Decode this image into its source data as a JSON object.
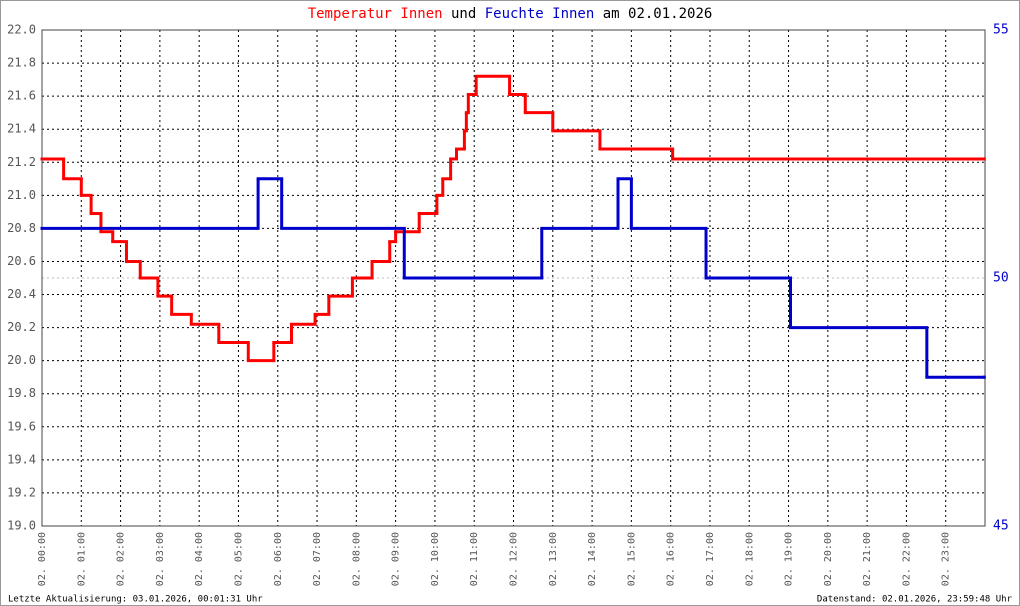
{
  "chart_data": {
    "type": "step-line",
    "title": [
      {
        "text": "Temperatur Innen",
        "color": "#ff0000"
      },
      {
        "text": "und",
        "color": "#000000"
      },
      {
        "text": "Feuchte Innen",
        "color": "#0000cc"
      },
      {
        "text": "am 02.01.2026",
        "color": "#000000"
      }
    ],
    "xlim": [
      0,
      24
    ],
    "xticks": [
      {
        "value": 0,
        "label": "02. 00:00"
      },
      {
        "value": 1,
        "label": "02. 01:00"
      },
      {
        "value": 2,
        "label": "02. 02:00"
      },
      {
        "value": 3,
        "label": "02. 03:00"
      },
      {
        "value": 4,
        "label": "02. 04:00"
      },
      {
        "value": 5,
        "label": "02. 05:00"
      },
      {
        "value": 6,
        "label": "02. 06:00"
      },
      {
        "value": 7,
        "label": "02. 07:00"
      },
      {
        "value": 8,
        "label": "02. 08:00"
      },
      {
        "value": 9,
        "label": "02. 09:00"
      },
      {
        "value": 10,
        "label": "02. 10:00"
      },
      {
        "value": 11,
        "label": "02. 11:00"
      },
      {
        "value": 12,
        "label": "02. 12:00"
      },
      {
        "value": 13,
        "label": "02. 13:00"
      },
      {
        "value": 14,
        "label": "02. 14:00"
      },
      {
        "value": 15,
        "label": "02. 15:00"
      },
      {
        "value": 16,
        "label": "02. 16:00"
      },
      {
        "value": 17,
        "label": "02. 17:00"
      },
      {
        "value": 18,
        "label": "02. 18:00"
      },
      {
        "value": 19,
        "label": "02. 19:00"
      },
      {
        "value": 20,
        "label": "02. 20:00"
      },
      {
        "value": 21,
        "label": "02. 21:00"
      },
      {
        "value": 22,
        "label": "02. 22:00"
      },
      {
        "value": 23,
        "label": "02. 23:00"
      }
    ],
    "ylim": [
      19.0,
      22.0
    ],
    "yticks": [
      {
        "value": 19.0,
        "label": "19.0"
      },
      {
        "value": 19.2,
        "label": "19.2"
      },
      {
        "value": 19.4,
        "label": "19.4"
      },
      {
        "value": 19.6,
        "label": "19.6"
      },
      {
        "value": 19.8,
        "label": "19.8"
      },
      {
        "value": 20.0,
        "label": "20.0"
      },
      {
        "value": 20.2,
        "label": "20.2"
      },
      {
        "value": 20.4,
        "label": "20.4"
      },
      {
        "value": 20.6,
        "label": "20.6"
      },
      {
        "value": 20.8,
        "label": "20.8"
      },
      {
        "value": 21.0,
        "label": "21.0"
      },
      {
        "value": 21.2,
        "label": "21.2"
      },
      {
        "value": 21.4,
        "label": "21.4"
      },
      {
        "value": 21.6,
        "label": "21.6"
      },
      {
        "value": 21.8,
        "label": "21.8"
      },
      {
        "value": 22.0,
        "label": "22.0"
      }
    ],
    "y2lim": [
      45,
      55
    ],
    "y2ticks": [
      45,
      50,
      55
    ],
    "y2_color": "#0000cc",
    "grid": true,
    "series": [
      {
        "name": "Temperatur Innen",
        "color": "#ff0000",
        "axis": "y",
        "x": [
          0,
          0.55,
          1.0,
          1.25,
          1.5,
          1.8,
          2.15,
          2.5,
          2.95,
          3.3,
          3.8,
          4.5,
          5.25,
          5.9,
          6.35,
          6.95,
          7.3,
          7.9,
          8.4,
          8.85,
          9.0,
          9.6,
          10.05,
          10.2,
          10.4,
          10.55,
          10.75,
          10.8,
          10.85,
          11.05,
          11.9,
          12.3,
          13.0,
          14.2,
          16.05,
          23.98
        ],
        "values": [
          21.22,
          21.1,
          21.0,
          20.89,
          20.78,
          20.72,
          20.6,
          20.5,
          20.39,
          20.28,
          20.22,
          20.11,
          20.0,
          20.11,
          20.22,
          20.28,
          20.39,
          20.5,
          20.6,
          20.72,
          20.78,
          20.89,
          21.0,
          21.1,
          21.22,
          21.28,
          21.39,
          21.5,
          21.61,
          21.72,
          21.61,
          21.5,
          21.39,
          21.28,
          21.22,
          21.22
        ]
      },
      {
        "name": "Feuchte Innen",
        "color": "#0000cc",
        "axis": "y2",
        "x": [
          0,
          5.5,
          6.1,
          9.22,
          12.72,
          14.66,
          15.0,
          16.9,
          19.05,
          22.52,
          23.98
        ],
        "values": [
          51,
          52,
          51,
          50,
          51,
          52,
          51,
          50,
          49,
          48,
          48
        ]
      }
    ],
    "footer_left": "Letzte Aktualisierung: 03.01.2026, 00:01:31 Uhr",
    "footer_right": "Datenstand: 02.01.2026, 23:59:48 Uhr"
  }
}
